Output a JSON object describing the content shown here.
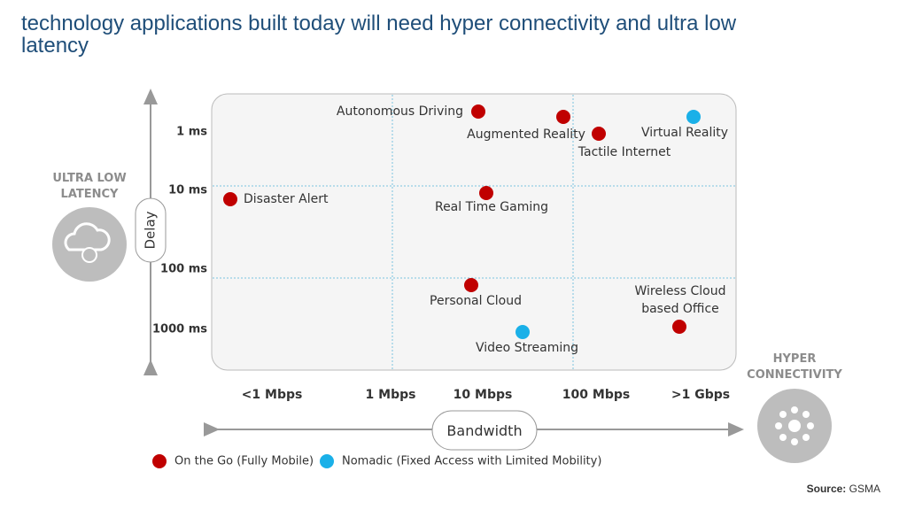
{
  "title": "technology applications built today will need hyper connectivity and ultra low latency",
  "y_axis": {
    "label": "Delay",
    "side_label": "ULTRA LOW LATENCY",
    "ticks": [
      "1 ms",
      "10 ms",
      "100 ms",
      "1000 ms"
    ]
  },
  "x_axis": {
    "label": "Bandwidth",
    "side_label": "HYPER CONNECTIVITY",
    "ticks": [
      "<1 Mbps",
      "1 Mbps",
      "10 Mbps",
      "100 Mbps",
      ">1 Gbps"
    ]
  },
  "applications": [
    {
      "label": "Autonomous Driving",
      "color": "#c00000"
    },
    {
      "label": "Augmented Reality",
      "color": "#c00000"
    },
    {
      "label": "Tactile Internet",
      "color": "#c00000"
    },
    {
      "label": "Virtual Reality",
      "color": "#1ab0e8"
    },
    {
      "label": "Disaster Alert",
      "color": "#c00000"
    },
    {
      "label": "Real Time Gaming",
      "color": "#c00000"
    },
    {
      "label": "Personal Cloud",
      "color": "#c00000"
    },
    {
      "label": "Wireless Cloud based Office",
      "color": "#c00000"
    },
    {
      "label": "Video Streaming",
      "color": "#1ab0e8"
    }
  ],
  "legend": [
    {
      "name": "On the Go (Fully Mobile)",
      "color": "#c00000"
    },
    {
      "name": "Nomadic (Fixed Access with Limited Mobility)",
      "color": "#1ab0e8"
    }
  ],
  "source": {
    "label": "Source:",
    "value": "GSMA"
  }
}
